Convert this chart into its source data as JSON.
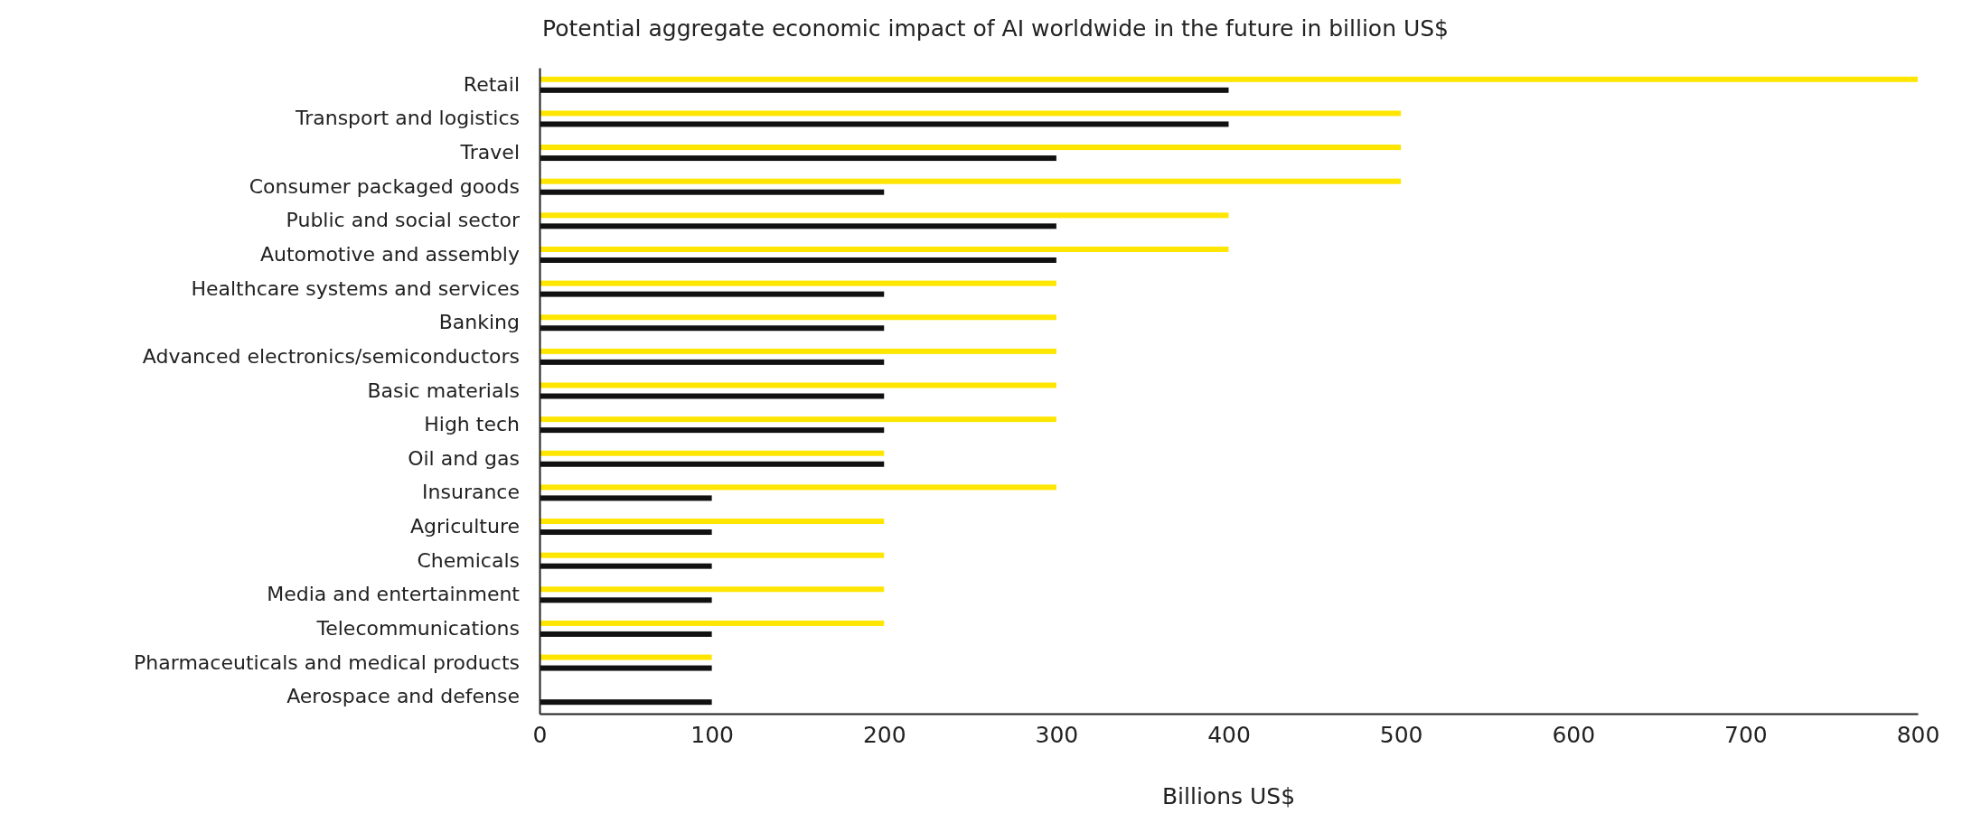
{
  "chart_data": {
    "type": "bar",
    "orientation": "horizontal",
    "title": "Potential aggregate economic impact of AI worldwide in the future in billion US$",
    "xlabel": "Billions US$",
    "categories": [
      "Retail",
      "Transport and logistics",
      "Travel",
      "Consumer packaged goods",
      "Public and social sector",
      "Automotive and assembly",
      "Healthcare systems and services",
      "Banking",
      "Advanced electronics/semiconductors",
      "Basic materials",
      "High tech",
      "Oil and gas",
      "Insurance",
      "Agriculture",
      "Chemicals",
      "Media and entertainment",
      "Telecommunications",
      "Pharmaceuticals and medical products",
      "Aerospace and defense"
    ],
    "series": [
      {
        "color": "#ffe600",
        "values": [
          800,
          500,
          500,
          500,
          400,
          400,
          300,
          300,
          300,
          300,
          300,
          200,
          300,
          200,
          200,
          200,
          200,
          100,
          null
        ]
      },
      {
        "color": "#111111",
        "values": [
          400,
          400,
          300,
          200,
          300,
          300,
          200,
          200,
          200,
          200,
          200,
          200,
          100,
          100,
          100,
          100,
          100,
          100,
          100
        ]
      }
    ],
    "xlim": [
      0,
      800
    ],
    "xticks": [
      0,
      100,
      200,
      300,
      400,
      500,
      600,
      700,
      800
    ],
    "grid": false
  }
}
